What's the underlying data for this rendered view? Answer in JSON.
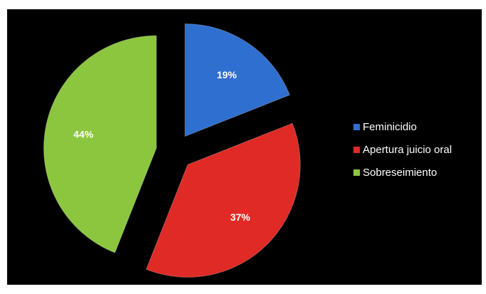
{
  "chart_data": {
    "type": "pie",
    "exploded": true,
    "start_angle_deg": 0,
    "direction": "clockwise",
    "slices": [
      {
        "label": "Feminicidio",
        "value": 19,
        "display": "19%",
        "color": "#2f6fd0"
      },
      {
        "label": "Apertura juicio oral",
        "value": 37,
        "display": "37%",
        "color": "#e02a25"
      },
      {
        "label": "Sobreseimiento",
        "value": 44,
        "display": "44%",
        "color": "#8cc63f"
      }
    ],
    "legend": {
      "position": "right"
    },
    "background_color": "#000000"
  }
}
